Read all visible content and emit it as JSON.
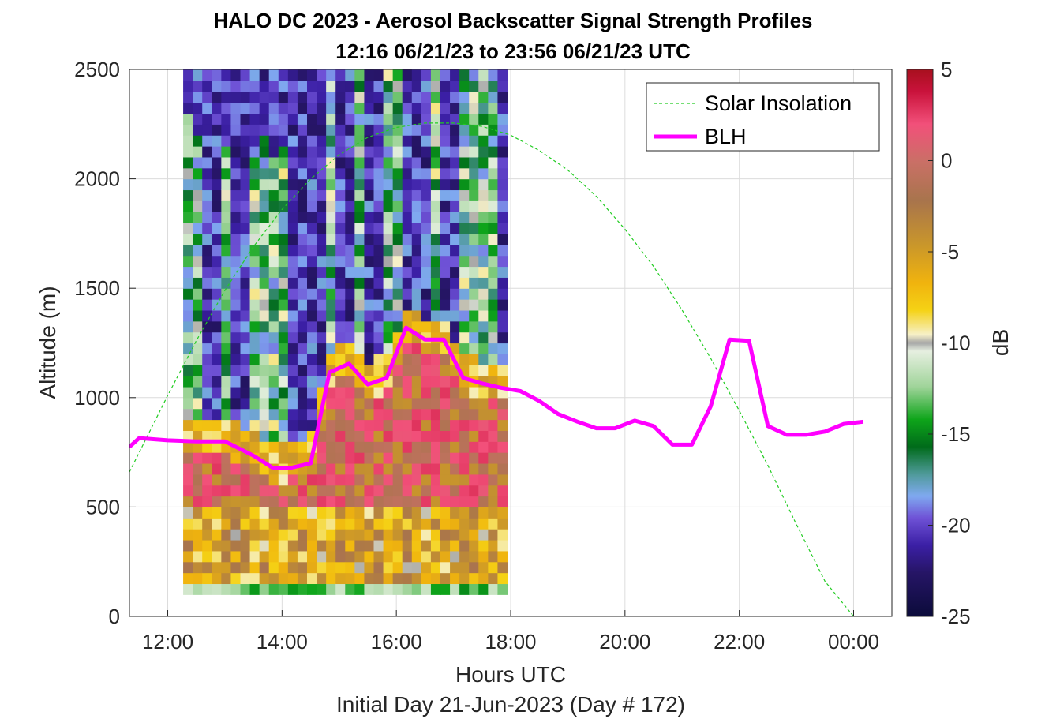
{
  "chart_data": {
    "type": "heatmap",
    "title": "HALO DC 2023 - Aerosol Backscatter Signal Strength Profiles",
    "subtitle": "12:16 06/21/23 to 23:56 06/21/23  UTC",
    "xlabel": "Hours UTC",
    "xlabel2": "Initial Day 21-Jun-2023 (Day # 172)",
    "ylabel": "Altitude (m)",
    "xlim": [
      11.33,
      24.67
    ],
    "ylim": [
      0,
      2500
    ],
    "x_ticks": [
      12,
      14,
      16,
      18,
      20,
      22,
      24
    ],
    "x_tick_labels": [
      "12:00",
      "14:00",
      "16:00",
      "18:00",
      "20:00",
      "22:00",
      "00:00"
    ],
    "y_ticks": [
      0,
      500,
      1000,
      1500,
      2000,
      2500
    ],
    "y_tick_labels": [
      "0",
      "500",
      "1000",
      "1500",
      "2000",
      "2500"
    ],
    "grid": true,
    "colorbar": {
      "label": "dB",
      "range": [
        -25,
        5
      ],
      "ticks": [
        -25,
        -20,
        -15,
        -10,
        -5,
        0,
        5
      ],
      "tick_labels": [
        "-25",
        "-20",
        "-15",
        "-10",
        "-5",
        "0",
        "5"
      ]
    },
    "heatmap": {
      "x_start": 12.27,
      "x_step": 0.1667,
      "x_count": 34,
      "y_start": 100,
      "y_step": 50,
      "y_count": 49,
      "value_range": [
        -25,
        5
      ],
      "signal_range_m": [
        100,
        2500
      ]
    },
    "series": [
      {
        "name": "Solar Insolation",
        "style": "dashed",
        "color": "#22cc22",
        "x": [
          11.33,
          12.0,
          12.5,
          13.0,
          13.5,
          14.0,
          14.5,
          15.0,
          15.5,
          16.0,
          16.5,
          17.0,
          17.5,
          18.0,
          18.5,
          19.0,
          19.5,
          20.0,
          20.5,
          21.0,
          21.5,
          22.0,
          22.5,
          23.0,
          23.5,
          24.0,
          24.5,
          24.67
        ],
        "y": [
          660,
          1010,
          1260,
          1490,
          1690,
          1860,
          2000,
          2110,
          2190,
          2235,
          2255,
          2255,
          2240,
          2200,
          2130,
          2040,
          1920,
          1770,
          1600,
          1400,
          1180,
          940,
          690,
          420,
          160,
          0,
          0,
          0
        ]
      },
      {
        "name": "BLH",
        "style": "solid",
        "color": "#ff00ff",
        "x": [
          11.33,
          11.5,
          12.0,
          12.5,
          13.0,
          13.5,
          13.83,
          14.17,
          14.5,
          14.83,
          15.17,
          15.5,
          15.83,
          16.17,
          16.5,
          16.83,
          17.17,
          17.5,
          17.83,
          18.17,
          18.5,
          18.83,
          19.17,
          19.5,
          19.83,
          20.17,
          20.5,
          20.83,
          21.17,
          21.5,
          21.83,
          22.17,
          22.5,
          22.83,
          23.17,
          23.5,
          23.83,
          24.17
        ],
        "y": [
          775,
          815,
          805,
          800,
          800,
          735,
          680,
          680,
          700,
          1115,
          1155,
          1060,
          1090,
          1320,
          1265,
          1265,
          1090,
          1065,
          1045,
          1030,
          985,
          925,
          890,
          860,
          860,
          895,
          870,
          785,
          785,
          960,
          1265,
          1260,
          870,
          830,
          830,
          845,
          880,
          890
        ]
      }
    ],
    "legend": {
      "placement": "top-right",
      "entries": [
        "Solar Insolation",
        "BLH"
      ]
    }
  }
}
